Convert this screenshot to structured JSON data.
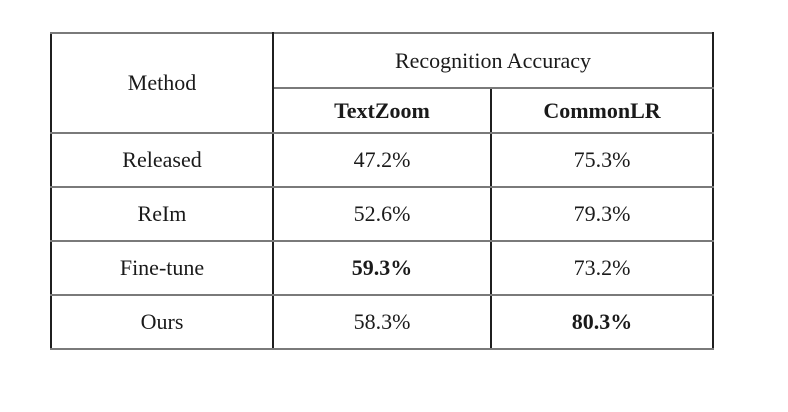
{
  "table": {
    "header": {
      "method_label": "Method",
      "group_label": "Recognition Accuracy",
      "col1_label": "TextZoom",
      "col2_label": "CommonLR"
    },
    "rows": [
      {
        "method": "Released",
        "textzoom": "47.2%",
        "commonlr": "75.3%"
      },
      {
        "method": "ReIm",
        "textzoom": "52.6%",
        "commonlr": "79.3%"
      },
      {
        "method": "Fine-tune",
        "textzoom": "59.3%",
        "commonlr": "73.2%"
      },
      {
        "method": "Ours",
        "textzoom": "58.3%",
        "commonlr": "80.3%"
      }
    ]
  },
  "chart_data": {
    "type": "table",
    "title": "",
    "column_group_label": "Recognition Accuracy",
    "columns": [
      "Method",
      "TextZoom",
      "CommonLR"
    ],
    "rows": [
      [
        "Released",
        "47.2%",
        "75.3%"
      ],
      [
        "ReIm",
        "52.6%",
        "79.3%"
      ],
      [
        "Fine-tune",
        "59.3%",
        "73.2%"
      ],
      [
        "Ours",
        "58.3%",
        "80.3%"
      ]
    ],
    "bold_cells": [
      {
        "row": "Fine-tune",
        "column": "TextZoom",
        "value": "59.3%"
      },
      {
        "row": "Ours",
        "column": "CommonLR",
        "value": "80.3%"
      }
    ]
  },
  "colors": {
    "background": "#ffffff",
    "text": "#1a1a1a",
    "horizontal_rule": "#7a7a7a",
    "vertical_rule": "#1f1f1f"
  }
}
